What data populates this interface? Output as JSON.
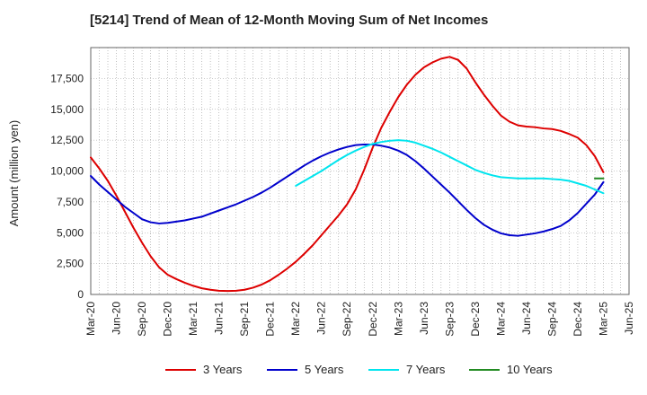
{
  "title": "[5214]  Trend of Mean of 12-Month Moving Sum of Net Incomes",
  "chart_data": {
    "type": "line",
    "title": "[5214]  Trend of Mean of 12-Month Moving Sum of Net Incomes",
    "xlabel": "",
    "ylabel": "Amount (million yen)",
    "ylim": [
      0,
      20000
    ],
    "xlim": [
      "2020-03",
      "2025-06"
    ],
    "y_ticks": [
      "0",
      "2,500",
      "5,000",
      "7,500",
      "10,000",
      "12,500",
      "15,000",
      "17,500"
    ],
    "x_ticks": [
      "Mar-20",
      "Jun-20",
      "Sep-20",
      "Dec-20",
      "Mar-21",
      "Jun-21",
      "Sep-21",
      "Dec-21",
      "Mar-22",
      "Jun-22",
      "Sep-22",
      "Dec-22",
      "Mar-23",
      "Jun-23",
      "Sep-23",
      "Dec-23",
      "Mar-24",
      "Jun-24",
      "Sep-24",
      "Dec-24",
      "Mar-25",
      "Jun-25"
    ],
    "grid": true,
    "legend_position": "bottom",
    "series": [
      {
        "name": "3 Years",
        "color": "#dd0000",
        "points": [
          [
            "2020-03",
            11100
          ],
          [
            "2020-04",
            10200
          ],
          [
            "2020-05",
            9200
          ],
          [
            "2020-06",
            8000
          ],
          [
            "2020-07",
            6700
          ],
          [
            "2020-08",
            5400
          ],
          [
            "2020-09",
            4200
          ],
          [
            "2020-10",
            3100
          ],
          [
            "2020-11",
            2200
          ],
          [
            "2020-12",
            1600
          ],
          [
            "2021-01",
            1250
          ],
          [
            "2021-02",
            950
          ],
          [
            "2021-03",
            700
          ],
          [
            "2021-04",
            500
          ],
          [
            "2021-05",
            380
          ],
          [
            "2021-06",
            300
          ],
          [
            "2021-07",
            280
          ],
          [
            "2021-08",
            300
          ],
          [
            "2021-09",
            380
          ],
          [
            "2021-10",
            550
          ],
          [
            "2021-11",
            800
          ],
          [
            "2021-12",
            1150
          ],
          [
            "2022-01",
            1600
          ],
          [
            "2022-02",
            2100
          ],
          [
            "2022-03",
            2650
          ],
          [
            "2022-04",
            3300
          ],
          [
            "2022-05",
            4000
          ],
          [
            "2022-06",
            4800
          ],
          [
            "2022-07",
            5600
          ],
          [
            "2022-08",
            6400
          ],
          [
            "2022-09",
            7300
          ],
          [
            "2022-10",
            8500
          ],
          [
            "2022-11",
            10100
          ],
          [
            "2022-12",
            11900
          ],
          [
            "2023-01",
            13500
          ],
          [
            "2023-02",
            14800
          ],
          [
            "2023-03",
            16000
          ],
          [
            "2023-04",
            17000
          ],
          [
            "2023-05",
            17800
          ],
          [
            "2023-06",
            18400
          ],
          [
            "2023-07",
            18800
          ],
          [
            "2023-08",
            19100
          ],
          [
            "2023-09",
            19250
          ],
          [
            "2023-10",
            19000
          ],
          [
            "2023-11",
            18300
          ],
          [
            "2023-12",
            17200
          ],
          [
            "2024-01",
            16200
          ],
          [
            "2024-02",
            15300
          ],
          [
            "2024-03",
            14500
          ],
          [
            "2024-04",
            14000
          ],
          [
            "2024-05",
            13700
          ],
          [
            "2024-06",
            13600
          ],
          [
            "2024-07",
            13550
          ],
          [
            "2024-08",
            13450
          ],
          [
            "2024-09",
            13400
          ],
          [
            "2024-10",
            13250
          ],
          [
            "2024-11",
            13000
          ],
          [
            "2024-12",
            12700
          ],
          [
            "2025-01",
            12100
          ],
          [
            "2025-02",
            11200
          ],
          [
            "2025-03",
            9900
          ]
        ]
      },
      {
        "name": "5 Years",
        "color": "#0000cc",
        "points": [
          [
            "2020-03",
            9600
          ],
          [
            "2020-04",
            8900
          ],
          [
            "2020-05",
            8300
          ],
          [
            "2020-06",
            7700
          ],
          [
            "2020-07",
            7100
          ],
          [
            "2020-08",
            6600
          ],
          [
            "2020-09",
            6100
          ],
          [
            "2020-10",
            5850
          ],
          [
            "2020-11",
            5750
          ],
          [
            "2020-12",
            5800
          ],
          [
            "2021-01",
            5900
          ],
          [
            "2021-02",
            6000
          ],
          [
            "2021-03",
            6150
          ],
          [
            "2021-04",
            6300
          ],
          [
            "2021-05",
            6550
          ],
          [
            "2021-06",
            6800
          ],
          [
            "2021-07",
            7050
          ],
          [
            "2021-08",
            7300
          ],
          [
            "2021-09",
            7600
          ],
          [
            "2021-10",
            7900
          ],
          [
            "2021-11",
            8250
          ],
          [
            "2021-12",
            8650
          ],
          [
            "2022-01",
            9100
          ],
          [
            "2022-02",
            9550
          ],
          [
            "2022-03",
            10000
          ],
          [
            "2022-04",
            10450
          ],
          [
            "2022-05",
            10850
          ],
          [
            "2022-06",
            11200
          ],
          [
            "2022-07",
            11500
          ],
          [
            "2022-08",
            11750
          ],
          [
            "2022-09",
            11950
          ],
          [
            "2022-10",
            12100
          ],
          [
            "2022-11",
            12150
          ],
          [
            "2022-12",
            12150
          ],
          [
            "2023-01",
            12050
          ],
          [
            "2023-02",
            11900
          ],
          [
            "2023-03",
            11650
          ],
          [
            "2023-04",
            11300
          ],
          [
            "2023-05",
            10800
          ],
          [
            "2023-06",
            10200
          ],
          [
            "2023-07",
            9550
          ],
          [
            "2023-08",
            8900
          ],
          [
            "2023-09",
            8250
          ],
          [
            "2023-10",
            7550
          ],
          [
            "2023-11",
            6850
          ],
          [
            "2023-12",
            6200
          ],
          [
            "2024-01",
            5650
          ],
          [
            "2024-02",
            5250
          ],
          [
            "2024-03",
            4950
          ],
          [
            "2024-04",
            4800
          ],
          [
            "2024-05",
            4750
          ],
          [
            "2024-06",
            4850
          ],
          [
            "2024-07",
            4950
          ],
          [
            "2024-08",
            5100
          ],
          [
            "2024-09",
            5300
          ],
          [
            "2024-10",
            5550
          ],
          [
            "2024-11",
            6000
          ],
          [
            "2024-12",
            6600
          ],
          [
            "2025-01",
            7350
          ],
          [
            "2025-02",
            8100
          ],
          [
            "2025-03",
            9100
          ]
        ]
      },
      {
        "name": "7 Years",
        "color": "#00e5ee",
        "points": [
          [
            "2022-03",
            8800
          ],
          [
            "2022-04",
            9200
          ],
          [
            "2022-05",
            9600
          ],
          [
            "2022-06",
            10000
          ],
          [
            "2022-07",
            10450
          ],
          [
            "2022-08",
            10900
          ],
          [
            "2022-09",
            11300
          ],
          [
            "2022-10",
            11650
          ],
          [
            "2022-11",
            11950
          ],
          [
            "2022-12",
            12200
          ],
          [
            "2023-01",
            12350
          ],
          [
            "2023-02",
            12450
          ],
          [
            "2023-03",
            12500
          ],
          [
            "2023-04",
            12450
          ],
          [
            "2023-05",
            12300
          ],
          [
            "2023-06",
            12050
          ],
          [
            "2023-07",
            11800
          ],
          [
            "2023-08",
            11500
          ],
          [
            "2023-09",
            11150
          ],
          [
            "2023-10",
            10800
          ],
          [
            "2023-11",
            10450
          ],
          [
            "2023-12",
            10100
          ],
          [
            "2024-01",
            9850
          ],
          [
            "2024-02",
            9650
          ],
          [
            "2024-03",
            9500
          ],
          [
            "2024-04",
            9450
          ],
          [
            "2024-05",
            9400
          ],
          [
            "2024-06",
            9400
          ],
          [
            "2024-07",
            9400
          ],
          [
            "2024-08",
            9400
          ],
          [
            "2024-09",
            9350
          ],
          [
            "2024-10",
            9300
          ],
          [
            "2024-11",
            9200
          ],
          [
            "2024-12",
            9000
          ],
          [
            "2025-01",
            8800
          ],
          [
            "2025-02",
            8500
          ],
          [
            "2025-03",
            8200
          ]
        ]
      },
      {
        "name": "10 Years",
        "color": "#228b22",
        "points": [
          [
            "2025-02",
            9400
          ],
          [
            "2025-03",
            9400
          ]
        ]
      }
    ]
  }
}
